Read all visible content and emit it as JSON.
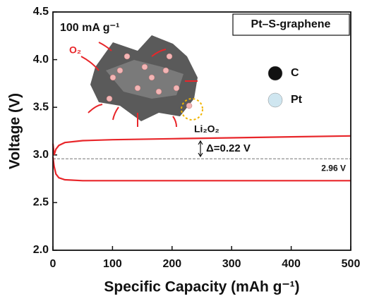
{
  "chart_data": {
    "type": "line",
    "xlabel": "Specific Capacity (mAh g⁻¹)",
    "ylabel": "Voltage (V)",
    "xlim": [
      0,
      500
    ],
    "xticks": [
      0,
      100,
      200,
      300,
      400,
      500
    ],
    "ylim": [
      2,
      4.5
    ],
    "yticks": [
      {
        "value": 2,
        "label": "2.0"
      },
      2.5,
      {
        "value": 3,
        "label": "3.0"
      },
      3.5,
      {
        "value": 4,
        "label": "4.0"
      },
      4.5
    ],
    "series": [
      {
        "color": "#e8262a",
        "x": [
          0,
          2,
          5,
          10,
          20,
          50,
          100,
          200,
          300,
          400,
          500
        ],
        "values": [
          3.12,
          3.0,
          3.06,
          3.1,
          3.13,
          3.15,
          3.16,
          3.17,
          3.18,
          3.19,
          3.2
        ]
      },
      {
        "color": "#e8262a",
        "x": [
          0,
          2,
          5,
          10,
          20,
          50,
          100,
          200,
          300,
          400,
          500
        ],
        "values": [
          2.98,
          2.88,
          2.8,
          2.76,
          2.74,
          2.73,
          2.73,
          2.73,
          2.73,
          2.73,
          2.73
        ]
      }
    ],
    "reference_line": {
      "value": 2.96,
      "label": "2.96 V"
    },
    "annotations": {
      "current": "100 mA g⁻¹",
      "sample": "Pt–S-graphene",
      "delta": "Δ=0.22 V",
      "o2": "O₂",
      "li2o2": "Li₂O₂"
    },
    "inset_legend": [
      {
        "label": "C",
        "color": "#111111"
      },
      {
        "label": "Pt",
        "color": "#cfe6f0"
      }
    ]
  }
}
